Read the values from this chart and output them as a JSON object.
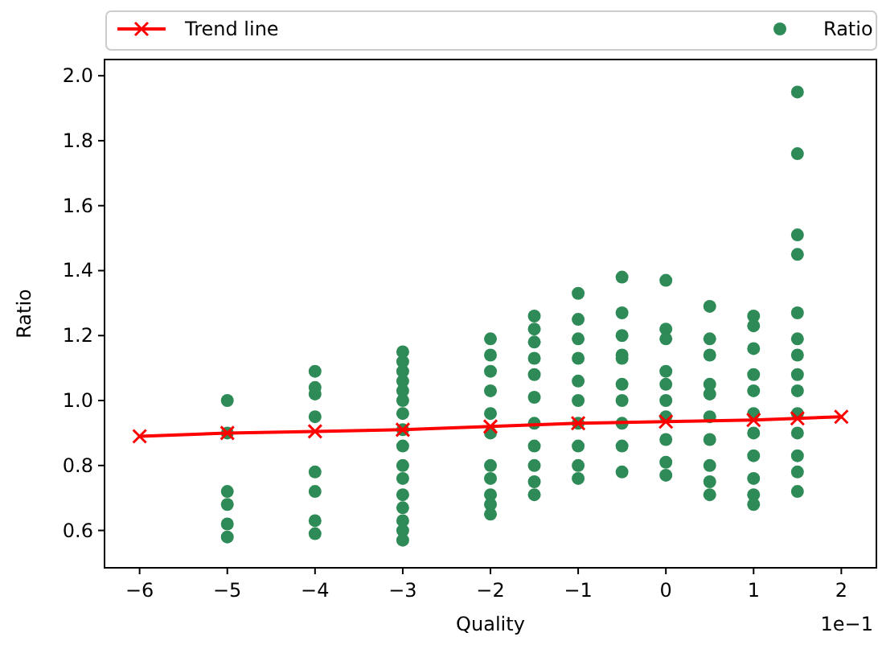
{
  "chart_data": {
    "type": "scatter",
    "xlabel": "Quality",
    "ylabel": "Ratio",
    "annotations": [
      "1e−1"
    ],
    "xlim": [
      -6.4,
      2.4
    ],
    "ylim": [
      0.485,
      2.05
    ],
    "xticks": [
      -6,
      -5,
      -4,
      -3,
      -2,
      -1,
      0,
      1,
      2
    ],
    "yticks": [
      0.6,
      0.8,
      {
        "value": 1,
        "label": "1.0"
      },
      1.2,
      1.4,
      1.6,
      1.8,
      {
        "value": 2,
        "label": "2.0"
      }
    ],
    "grid": false,
    "legend": "top",
    "series": [
      {
        "name": "Trend line",
        "type": "line",
        "color": "#ff0000",
        "marker": "cross",
        "line_style": "solid",
        "x": [
          -6,
          -5,
          -4,
          -3,
          -2,
          -1,
          0,
          1,
          1.5,
          2
        ],
        "values": [
          0.89,
          0.9,
          0.905,
          0.91,
          0.92,
          0.93,
          0.935,
          0.94,
          0.945,
          0.95
        ]
      },
      {
        "name": "Ratio",
        "color": "#2e8b57",
        "marker": "circle",
        "x": [
          -5,
          -5,
          -5,
          -5,
          -5,
          -5,
          -4,
          -4,
          -4,
          -4,
          -4,
          -4,
          -4,
          -4,
          -3,
          -3,
          -3,
          -3,
          -3,
          -3,
          -3,
          -3,
          -3,
          -3,
          -3,
          -3,
          -3,
          -3,
          -3,
          -3,
          -2,
          -2,
          -2,
          -2,
          -2,
          -2,
          -2,
          -2,
          -2,
          -2,
          -2,
          -1.5,
          -1.5,
          -1.5,
          -1.5,
          -1.5,
          -1.5,
          -1.5,
          -1.5,
          -1.5,
          -1.5,
          -1.5,
          -1,
          -1,
          -1,
          -1,
          -1,
          -1,
          -1,
          -1,
          -1,
          -1,
          -0.5,
          -0.5,
          -0.5,
          -0.5,
          -0.5,
          -0.5,
          -0.5,
          -0.5,
          -0.5,
          -0.5,
          0,
          0,
          0,
          0,
          0,
          0,
          0,
          0,
          0,
          0,
          0.5,
          0.5,
          0.5,
          0.5,
          0.5,
          0.5,
          0.5,
          0.5,
          0.5,
          0.5,
          1,
          1,
          1,
          1,
          1,
          1,
          1,
          1,
          1,
          1,
          1,
          1.5,
          1.5,
          1.5,
          1.5,
          1.5,
          1.5,
          1.5,
          1.5,
          1.5,
          1.5,
          1.5,
          1.5,
          1.5,
          1.5
        ],
        "values": [
          1.0,
          0.9,
          0.72,
          0.68,
          0.62,
          0.58,
          1.09,
          1.04,
          1.02,
          0.95,
          0.78,
          0.72,
          0.63,
          0.59,
          1.15,
          1.12,
          1.09,
          1.06,
          1.03,
          1.0,
          0.96,
          0.91,
          0.86,
          0.8,
          0.76,
          0.71,
          0.67,
          0.63,
          0.6,
          0.57,
          1.19,
          1.14,
          1.09,
          1.03,
          0.96,
          0.9,
          0.8,
          0.76,
          0.71,
          0.68,
          0.65,
          1.26,
          1.22,
          1.18,
          1.13,
          1.08,
          1.01,
          0.93,
          0.86,
          0.8,
          0.75,
          0.71,
          1.33,
          1.25,
          1.19,
          1.13,
          1.06,
          1.0,
          0.93,
          0.86,
          0.8,
          0.76,
          1.38,
          1.27,
          1.2,
          1.14,
          1.13,
          1.05,
          1.0,
          0.93,
          0.86,
          0.78,
          1.37,
          1.22,
          1.19,
          1.09,
          1.05,
          1.0,
          0.95,
          0.88,
          0.81,
          0.77,
          1.29,
          1.19,
          1.14,
          1.05,
          1.02,
          0.95,
          0.88,
          0.8,
          0.75,
          0.71,
          1.26,
          1.23,
          1.16,
          1.08,
          1.03,
          0.96,
          0.9,
          0.83,
          0.76,
          0.71,
          0.68,
          1.95,
          1.76,
          1.51,
          1.45,
          1.27,
          1.19,
          1.14,
          1.08,
          1.03,
          0.96,
          0.9,
          0.83,
          0.78,
          0.72
        ]
      }
    ]
  }
}
